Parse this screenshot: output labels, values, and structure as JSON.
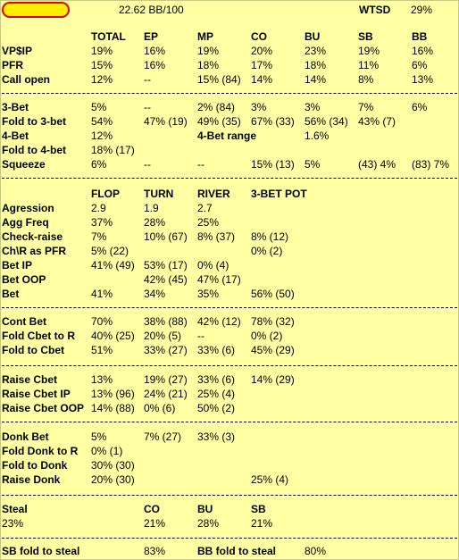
{
  "header": {
    "bb100": "22.62 BB/100",
    "wtsd_label": "WTSD",
    "wtsd_value": "29%"
  },
  "colors": {
    "background": "#ffffa3",
    "badge_fill": "#ffee00",
    "badge_border": "#e30000"
  },
  "preflop": {
    "headers": [
      "TOTAL",
      "EP",
      "MP",
      "CO",
      "BU",
      "SB",
      "BB"
    ],
    "rows": [
      {
        "label": "VP$IP",
        "cells": [
          "19%",
          "16%",
          "19%",
          "20%",
          "23%",
          "19%",
          "16%"
        ]
      },
      {
        "label": "PFR",
        "cells": [
          "15%",
          "16%",
          "18%",
          "17%",
          "18%",
          "11%",
          "6%"
        ]
      },
      {
        "label": "Call open",
        "cells": [
          "12%",
          "--",
          "15%  (84)",
          "14%",
          "14%",
          "8%",
          "13%"
        ]
      }
    ]
  },
  "threebet": {
    "rows": [
      {
        "label": "3-Bet",
        "cells": [
          "5%",
          "--",
          "2%  (84)",
          "3%",
          "3%",
          "7%",
          "6%"
        ]
      },
      {
        "label": "Fold to 3-bet",
        "cells": [
          "54%",
          "47%  (19)",
          "49%  (35)",
          "67%  (33)",
          "56%  (34)",
          "43%  (7)",
          ""
        ]
      },
      {
        "label": "4-Bet",
        "cells": [
          "12%",
          "",
          "",
          "",
          "",
          "",
          ""
        ]
      },
      {
        "label": "Fold to 4-bet",
        "cells": [
          "18%  (17)",
          "",
          "",
          "",
          "",
          "",
          ""
        ]
      },
      {
        "label": "Squeeze",
        "cells": [
          "6%",
          "--",
          "--",
          "15%  (13)",
          "5%",
          "(43)  4%",
          "(83)  7%"
        ]
      }
    ],
    "range_label": "4-Bet range",
    "range_value": "1.6%"
  },
  "postflop": {
    "headers": [
      "FLOP",
      "TURN",
      "RIVER",
      "3-BET POT"
    ],
    "rows": [
      {
        "label": "Agression",
        "cells": [
          "2.9",
          "1.9",
          "2.7",
          ""
        ]
      },
      {
        "label": "Agg Freq",
        "cells": [
          "37%",
          "28%",
          "25%",
          ""
        ]
      },
      {
        "label": "Check-raise",
        "cells": [
          "7%",
          "10%  (67)",
          "8%  (37)",
          "8%  (12)"
        ]
      },
      {
        "label": "Ch\\R as PFR",
        "cells": [
          "5%  (22)",
          "",
          "",
          "0%  (2)"
        ]
      },
      {
        "label": "Bet IP",
        "cells": [
          "41%  (49)",
          "53%  (17)",
          "0%  (4)",
          ""
        ]
      },
      {
        "label": "Bet OOP",
        "cells": [
          "",
          "42%  (45)",
          "47%  (17)",
          ""
        ]
      },
      {
        "label": "Bet",
        "cells": [
          "41%",
          "34%",
          "35%",
          "56%  (50)"
        ]
      }
    ]
  },
  "cbet": {
    "rows": [
      {
        "label": "Cont Bet",
        "cells": [
          "70%",
          "38%  (88)",
          "42%  (12)",
          "78%  (32)"
        ]
      },
      {
        "label": "Fold Cbet to R",
        "cells": [
          "40%  (25)",
          "20%  (5)",
          "--",
          "0%  (2)"
        ]
      },
      {
        "label": "Fold to Cbet",
        "cells": [
          "51%",
          "33%  (27)",
          "33%  (6)",
          "45%  (29)"
        ]
      }
    ]
  },
  "raisecbet": {
    "rows": [
      {
        "label": "Raise Cbet",
        "cells": [
          "13%",
          "19%  (27)",
          "33%  (6)",
          "14%  (29)"
        ]
      },
      {
        "label": "Raise Cbet IP",
        "cells": [
          "13%  (96)",
          "24%  (21)",
          "25%  (4)",
          ""
        ]
      },
      {
        "label": "Raise Cbet OOP",
        "cells": [
          "14%  (88)",
          "0%  (6)",
          "50%  (2)",
          ""
        ]
      }
    ]
  },
  "donk": {
    "rows": [
      {
        "label": "Donk Bet",
        "cells": [
          "5%",
          "7%  (27)",
          "33%  (3)",
          ""
        ]
      },
      {
        "label": "Fold Donk to R",
        "cells": [
          "0%  (1)",
          "",
          "",
          ""
        ]
      },
      {
        "label": "Fold to Donk",
        "cells": [
          "30%  (30)",
          "",
          "",
          ""
        ]
      },
      {
        "label": "Raise Donk",
        "cells": [
          "20%  (30)",
          "",
          "",
          "25%  (4)"
        ]
      }
    ]
  },
  "steal": {
    "label": "Steal",
    "value": "23%",
    "headers": [
      "CO",
      "BU",
      "SB"
    ],
    "cells": [
      "21%",
      "28%",
      "21%"
    ]
  },
  "foldsteal": {
    "sb_label": "SB fold to steal",
    "sb_value": "83%",
    "bb_label": "BB fold to steal",
    "bb_value": "80%"
  }
}
